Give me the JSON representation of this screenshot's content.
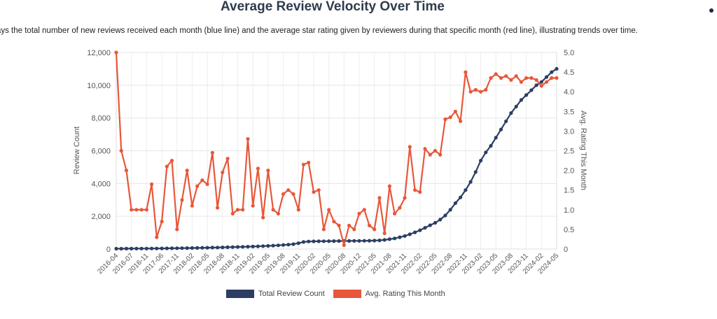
{
  "chart_data": {
    "type": "line",
    "title": "Average Review Velocity Over Time",
    "subtitle": "plays the total number of new reviews received each month (blue line) and the average star rating given by reviewers during that specific month (red line), illustrating trends over time.",
    "ylabel_left": "Review Count",
    "ylabel_right": "Avg. Rating This Month",
    "ylim_left": [
      0,
      12000
    ],
    "ylim_right": [
      0,
      5
    ],
    "left_ticks": [
      "0",
      "2,000",
      "4,000",
      "6,000",
      "8,000",
      "10,000",
      "12,000"
    ],
    "right_ticks": [
      "0",
      "0.5",
      "1.0",
      "1.5",
      "2.0",
      "2.5",
      "3.0",
      "3.5",
      "4.0",
      "4.5",
      "5.0"
    ],
    "x_tick_labels": [
      "2016-04",
      "2016-07",
      "2016-11",
      "2017-06",
      "2017-11",
      "2018-02",
      "2018-05",
      "2018-08",
      "2018-11",
      "2019-02",
      "2019-05",
      "2019-08",
      "2019-11",
      "2020-02",
      "2020-05",
      "2020-08",
      "2020-12",
      "2021-05",
      "2021-08",
      "2021-11",
      "2022-02",
      "2022-05",
      "2022-08",
      "2022-11",
      "2023-02",
      "2023-05",
      "2023-08",
      "2023-11",
      "2024-02",
      "2024-05"
    ],
    "legend": [
      "Total Review Count",
      "Avg. Rating This Month"
    ],
    "series": [
      {
        "name": "Total Review Count",
        "axis": "left",
        "color": "#2c3e63",
        "values": [
          20,
          22,
          24,
          26,
          28,
          30,
          32,
          34,
          36,
          40,
          44,
          48,
          52,
          56,
          60,
          64,
          70,
          76,
          82,
          88,
          95,
          102,
          110,
          118,
          126,
          135,
          144,
          154,
          165,
          178,
          192,
          208,
          226,
          246,
          268,
          300,
          360,
          430,
          460,
          470,
          475,
          480,
          483,
          486,
          489,
          492,
          495,
          498,
          501,
          505,
          510,
          518,
          530,
          560,
          600,
          650,
          720,
          800,
          900,
          1020,
          1150,
          1300,
          1450,
          1600,
          1800,
          2050,
          2400,
          2800,
          3150,
          3600,
          4100,
          4700,
          5400,
          5900,
          6300,
          6800,
          7300,
          7800,
          8300,
          8700,
          9100,
          9400,
          9700,
          10000,
          10200,
          10500,
          10800,
          11000
        ]
      },
      {
        "name": "Avg. Rating This Month",
        "axis": "right",
        "color": "#e8573a",
        "values": [
          5.0,
          2.5,
          2.0,
          1.0,
          1.0,
          1.0,
          1.0,
          1.65,
          0.3,
          0.7,
          2.1,
          2.25,
          0.5,
          1.25,
          2.0,
          1.1,
          1.6,
          1.75,
          1.65,
          2.45,
          1.05,
          1.95,
          2.3,
          0.9,
          1.0,
          1.0,
          2.8,
          1.1,
          2.05,
          0.8,
          2.0,
          1.0,
          0.9,
          1.4,
          1.5,
          1.4,
          1.0,
          2.15,
          2.2,
          1.45,
          1.5,
          0.5,
          1.0,
          0.7,
          0.6,
          0.1,
          0.6,
          0.5,
          0.9,
          1.0,
          0.6,
          0.5,
          1.3,
          0.4,
          1.6,
          0.9,
          1.05,
          1.3,
          2.6,
          1.5,
          1.45,
          2.55,
          2.4,
          2.5,
          2.4,
          3.3,
          3.35,
          3.5,
          3.25,
          4.5,
          4.0,
          4.05,
          4.0,
          4.05,
          4.35,
          4.45,
          4.35,
          4.4,
          4.3,
          4.4,
          4.25,
          4.35,
          4.35,
          4.3,
          4.15,
          4.25,
          4.35,
          4.35
        ]
      }
    ]
  }
}
